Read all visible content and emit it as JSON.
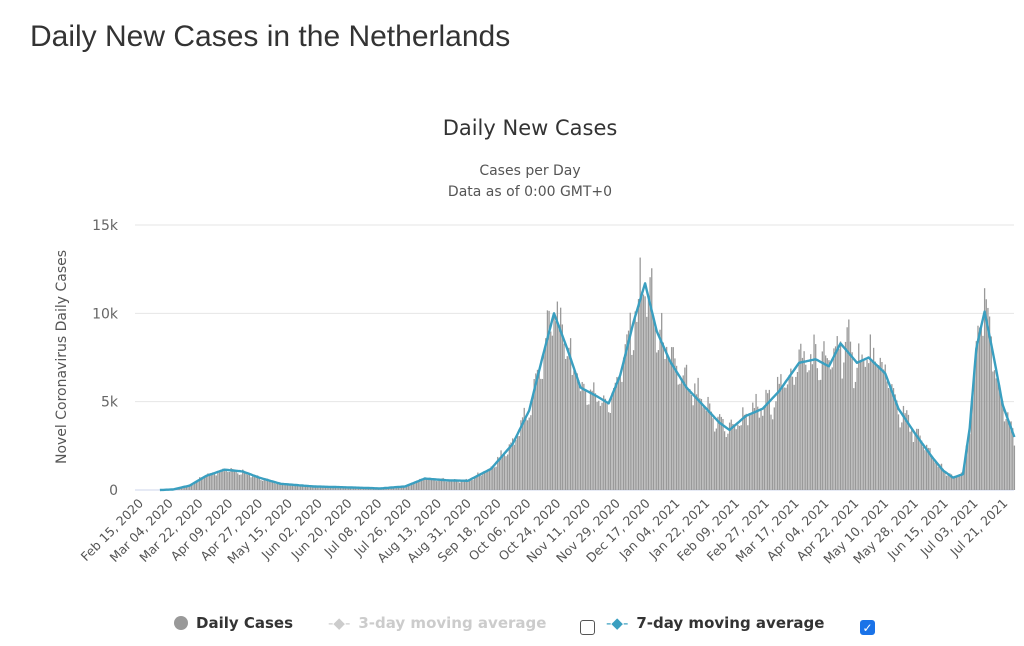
{
  "page_title": "Daily New Cases in the Netherlands",
  "chart_data": {
    "type": "bar",
    "title": "Daily New Cases",
    "subtitle_lines": [
      "Cases per Day",
      "Data as of 0:00 GMT+0"
    ],
    "ylabel": "Novel Coronavirus Daily Cases",
    "xlabel": "",
    "ylim": [
      0,
      15000
    ],
    "y_ticks": [
      {
        "value": 0,
        "label": "0"
      },
      {
        "value": 5000,
        "label": "5k"
      },
      {
        "value": 10000,
        "label": "10k"
      },
      {
        "value": 15000,
        "label": "15k"
      }
    ],
    "x_start_date": "Feb 15, 2020",
    "x_range_days": [
      0,
      530
    ],
    "x_tick_step_days": 18,
    "x_tick_labels": [
      "Feb 15, 2020",
      "Mar 04, 2020",
      "Mar 22, 2020",
      "Apr 09, 2020",
      "Apr 27, 2020",
      "May 15, 2020",
      "Jun 02, 2020",
      "Jun 20, 2020",
      "Jul 08, 2020",
      "Jul 26, 2020",
      "Aug 13, 2020",
      "Aug 31, 2020",
      "Sep 18, 2020",
      "Oct 06, 2020",
      "Oct 24, 2020",
      "Nov 11, 2020",
      "Nov 29, 2020",
      "Dec 17, 2020",
      "Jan 04, 2021",
      "Jan 22, 2021",
      "Feb 09, 2021",
      "Feb 27, 2021",
      "Mar 17, 2021",
      "Apr 04, 2021",
      "Apr 22, 2021",
      "May 10, 2021",
      "May 28, 2021",
      "Jun 15, 2021",
      "Jul 03, 2021",
      "Jul 21, 2021"
    ],
    "grid": true,
    "legend_position": "bottom",
    "series": [
      {
        "name": "Daily Cases",
        "kind": "bar",
        "color": "#999999",
        "visible": true
      },
      {
        "name": "3-day moving average",
        "kind": "line",
        "color": "#cccccc",
        "visible": false
      },
      {
        "name": "7-day moving average",
        "kind": "line",
        "color": "#3a9fc0",
        "visible": true,
        "points_day_value": [
          [
            12,
            0
          ],
          [
            20,
            30
          ],
          [
            30,
            250
          ],
          [
            40,
            800
          ],
          [
            51,
            1150
          ],
          [
            62,
            1050
          ],
          [
            72,
            700
          ],
          [
            85,
            350
          ],
          [
            105,
            200
          ],
          [
            125,
            150
          ],
          [
            145,
            90
          ],
          [
            160,
            200
          ],
          [
            172,
            650
          ],
          [
            185,
            550
          ],
          [
            198,
            520
          ],
          [
            212,
            1200
          ],
          [
            225,
            2600
          ],
          [
            235,
            4500
          ],
          [
            243,
            7500
          ],
          [
            250,
            10000
          ],
          [
            258,
            8000
          ],
          [
            266,
            5800
          ],
          [
            276,
            5300
          ],
          [
            283,
            4900
          ],
          [
            290,
            6500
          ],
          [
            298,
            9500
          ],
          [
            305,
            11700
          ],
          [
            312,
            9000
          ],
          [
            320,
            7300
          ],
          [
            330,
            5800
          ],
          [
            340,
            4800
          ],
          [
            350,
            3800
          ],
          [
            356,
            3400
          ],
          [
            366,
            4200
          ],
          [
            376,
            4600
          ],
          [
            386,
            5600
          ],
          [
            398,
            7200
          ],
          [
            408,
            7400
          ],
          [
            416,
            7000
          ],
          [
            423,
            8300
          ],
          [
            433,
            7200
          ],
          [
            440,
            7500
          ],
          [
            450,
            6600
          ],
          [
            458,
            4600
          ],
          [
            468,
            3200
          ],
          [
            478,
            1900
          ],
          [
            485,
            1100
          ],
          [
            491,
            700
          ],
          [
            497,
            900
          ],
          [
            501,
            3500
          ],
          [
            505,
            8000
          ],
          [
            510,
            10100
          ],
          [
            515,
            7800
          ],
          [
            521,
            4800
          ],
          [
            528,
            3000
          ]
        ]
      }
    ]
  },
  "legend": {
    "daily": "Daily Cases",
    "avg3": "3-day moving average",
    "avg7": "7-day moving average",
    "avg3_checked": false,
    "avg7_checked": true
  }
}
